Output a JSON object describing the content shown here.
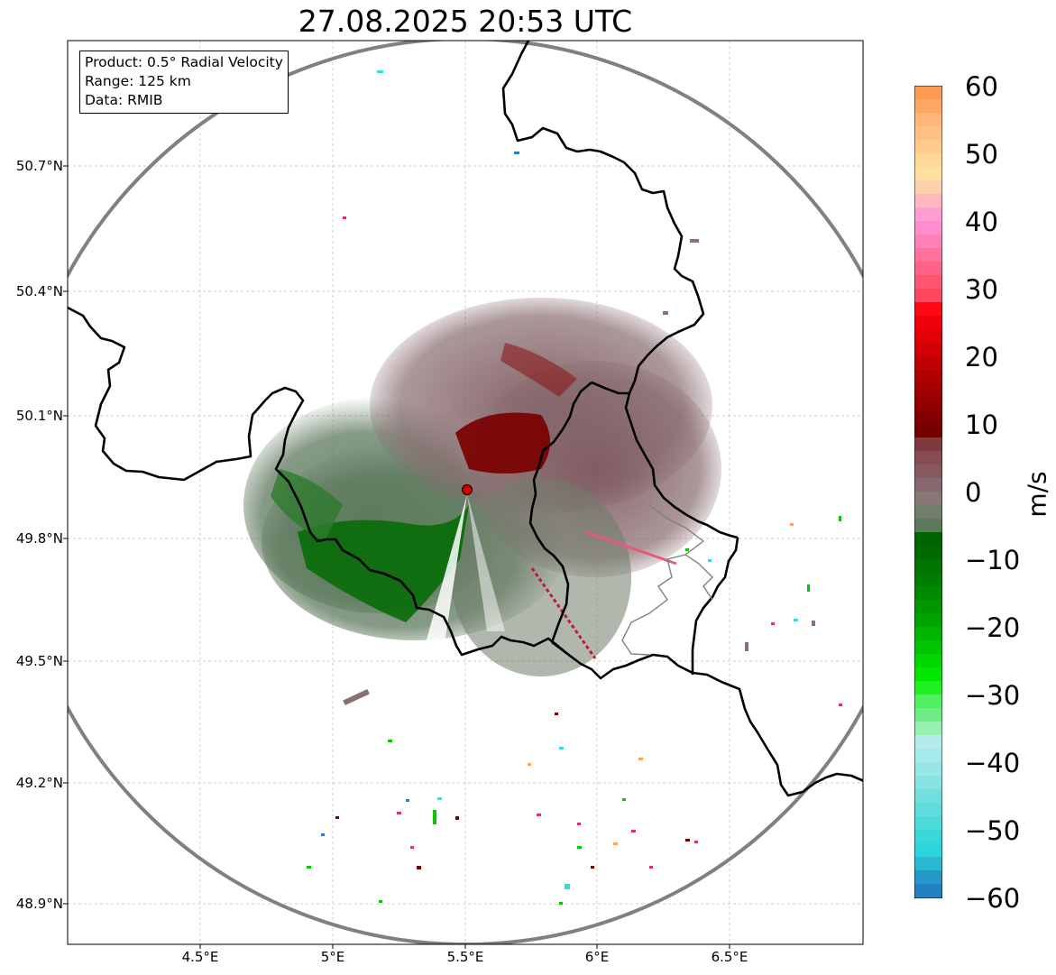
{
  "title": "27.08.2025 20:53 UTC",
  "info": {
    "product": "Product: 0.5° Radial Velocity",
    "range": "Range: 125 km",
    "data": "Data: RMIB"
  },
  "lat_labels": [
    "50.7°N",
    "50.4°N",
    "50.1°N",
    "49.8°N",
    "49.5°N",
    "49.2°N",
    "48.9°N"
  ],
  "lon_labels": [
    "4.5°E",
    "5°E",
    "5.5°E",
    "6°E",
    "6.5°E"
  ],
  "colorbar": {
    "unit": "m/s",
    "ticks": [
      "60",
      "50",
      "40",
      "30",
      "20",
      "10",
      "0",
      "−10",
      "−20",
      "−30",
      "−40",
      "−50",
      "−60"
    ],
    "vmin": -60,
    "vmax": 60
  },
  "radar_site": {
    "lat": 49.91,
    "lon": 5.505
  },
  "colors": {
    "range_ring": "#808080",
    "border": "#000000",
    "site_marker": "#d40000",
    "strong_away": "#7a0000",
    "strong_toward": "#006400",
    "neutral_away": "#876b6f",
    "neutral_toward": "#5e7a5e"
  }
}
